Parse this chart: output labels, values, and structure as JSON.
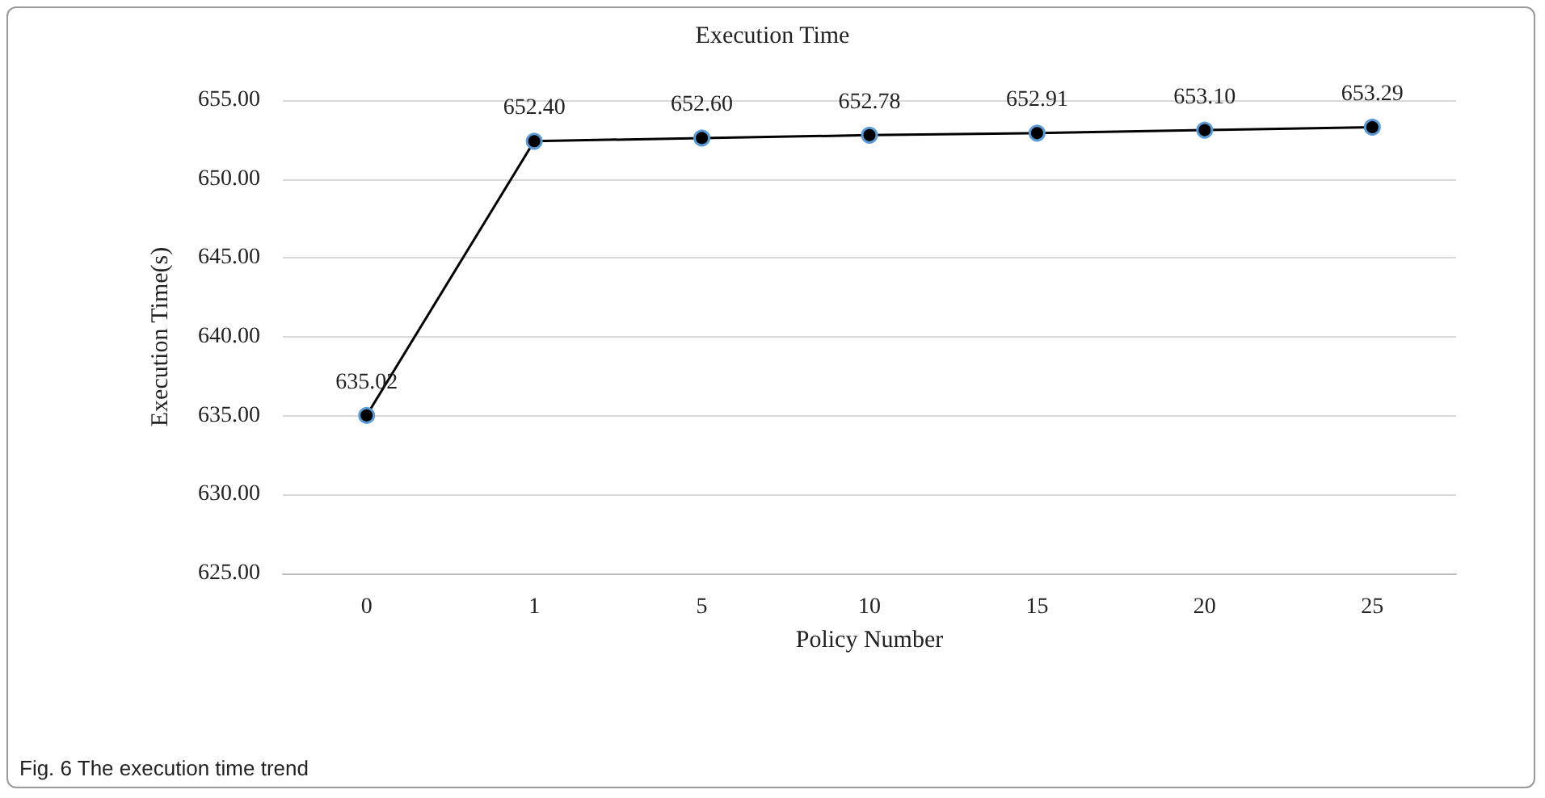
{
  "chart_data": {
    "type": "line",
    "title": "Execution Time",
    "xlabel": "Policy Number",
    "ylabel": "Execution Time(s)",
    "categories": [
      "0",
      "1",
      "5",
      "10",
      "15",
      "20",
      "25"
    ],
    "series": [
      {
        "color": "#000000",
        "values": [
          635.02,
          652.4,
          652.6,
          652.78,
          652.91,
          653.1,
          653.29
        ],
        "value_labels": [
          "635.02",
          "652.40",
          "652.60",
          "652.78",
          "652.91",
          "653.10",
          "653.29"
        ]
      }
    ],
    "ylim": [
      625,
      655
    ],
    "yticks": [
      {
        "value": 625,
        "label": "625.00"
      },
      {
        "value": 630,
        "label": "630.00"
      },
      {
        "value": 635,
        "label": "635.00"
      },
      {
        "value": 640,
        "label": "640.00"
      },
      {
        "value": 645,
        "label": "645.00"
      },
      {
        "value": 650,
        "label": "650.00"
      },
      {
        "value": 655,
        "label": "655.00"
      }
    ],
    "grid": "y",
    "marker": "circle",
    "line_style": "solid",
    "annotations": [
      "Fig. 6 The execution time trend"
    ]
  }
}
